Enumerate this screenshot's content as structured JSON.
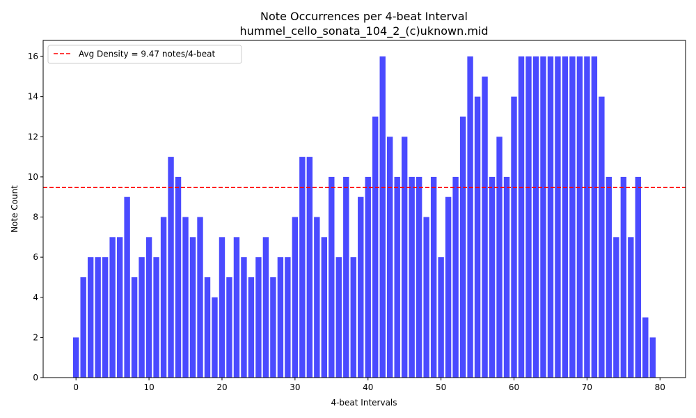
{
  "chart_data": {
    "type": "bar",
    "title": "Note Occurrences per 4-beat Interval",
    "subtitle": "hummel_cello_sonata_104_2_(c)uknown.mid",
    "xlabel": "4-beat Intervals",
    "ylabel": "Note Count",
    "xlim": [
      -4.5,
      83.5
    ],
    "ylim": [
      0,
      16.8
    ],
    "x_ticks": [
      0,
      10,
      20,
      30,
      40,
      50,
      60,
      70,
      80
    ],
    "y_ticks": [
      0,
      2,
      4,
      6,
      8,
      10,
      12,
      14,
      16
    ],
    "bar_color": "#4a4aff",
    "grid": false,
    "legend_position": "upper-left",
    "reference_line": {
      "value": 9.47,
      "label": "Avg Density = 9.47 notes/4-beat",
      "color": "#ff0000",
      "style": "dashed"
    },
    "values": [
      2,
      5,
      6,
      6,
      6,
      7,
      7,
      9,
      5,
      6,
      7,
      6,
      8,
      11,
      10,
      8,
      7,
      8,
      5,
      4,
      7,
      5,
      7,
      6,
      5,
      6,
      7,
      5,
      6,
      6,
      8,
      11,
      11,
      8,
      7,
      10,
      6,
      10,
      6,
      9,
      10,
      13,
      16,
      12,
      10,
      12,
      10,
      10,
      8,
      10,
      6,
      9,
      10,
      13,
      16,
      14,
      15,
      10,
      12,
      10,
      14,
      16,
      16,
      16,
      16,
      16,
      16,
      16,
      16,
      16,
      16,
      16,
      14,
      10,
      7,
      10,
      7,
      10,
      3,
      2
    ]
  }
}
